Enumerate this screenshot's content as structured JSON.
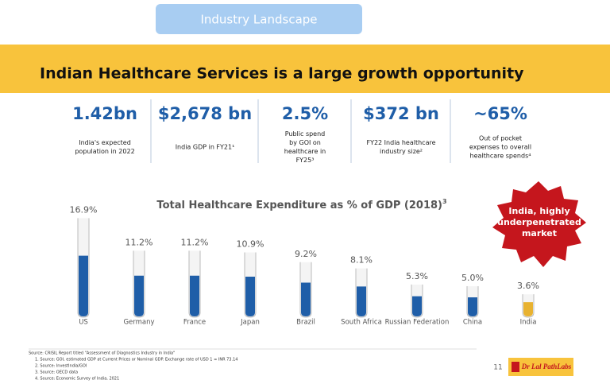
{
  "header": {
    "section": "Industry Landscape",
    "title": "Indian Healthcare Services is a large growth opportunity"
  },
  "stats": [
    {
      "value": "1.42bn",
      "caption": [
        "India's expected",
        "population in 2022"
      ]
    },
    {
      "value": "$2,678 bn",
      "caption": [
        "India GDP in FY21¹"
      ]
    },
    {
      "value": "2.5%",
      "caption": [
        "Public spend",
        "by GOI on",
        "healthcare in",
        "FY25³"
      ]
    },
    {
      "value": "$372 bn",
      "caption": [
        "FY22 India healthcare",
        "industry size²"
      ]
    },
    {
      "value": "~65%",
      "caption": [
        "Out of pocket",
        "expenses to overall",
        "healthcare spends⁴"
      ]
    }
  ],
  "chart_data": {
    "type": "tube",
    "title": "Total Healthcare Expenditure as % of GDP (2018)",
    "title_note": "3",
    "categories": [
      "US",
      "Germany",
      "France",
      "Japan",
      "Brazil",
      "South Africa",
      "Russian Federation",
      "China",
      "India"
    ],
    "values": [
      16.9,
      11.2,
      11.2,
      10.9,
      9.2,
      8.1,
      5.3,
      5.0,
      3.6
    ],
    "value_labels": [
      "16.9%",
      "11.2%",
      "11.2%",
      "10.9%",
      "9.2%",
      "8.1%",
      "5.3%",
      "5.0%",
      "3.6%"
    ],
    "color": "#1f5ea8",
    "highlight_color": "#e8b230"
  },
  "badge": [
    "India, highly",
    "underpenetrated",
    "market"
  ],
  "footer": {
    "sources": [
      "Source: CRISIL Report titled \"Assessment of Diagnostics Industry in India\"",
      "1.   Source: GOI, estimated GDP at Current Prices or Nominal GDP. Exchange rate of USD 1 = INR 73.14",
      "2.   Source: InvestIndia/GOI",
      "3.   Source: OECD data",
      "4.   Source: Economic Survey of India, 2021"
    ],
    "page": "11",
    "logo": "Dr Lal PathLabs"
  }
}
